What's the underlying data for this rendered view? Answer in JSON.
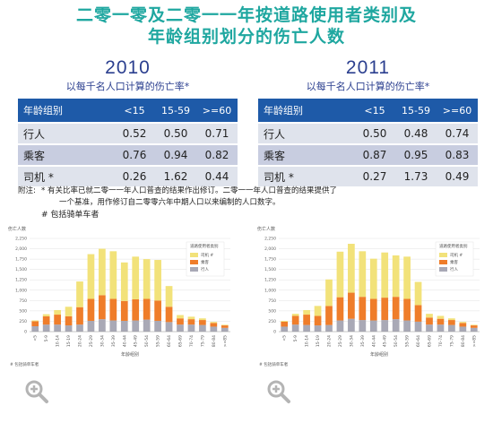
{
  "title_line1": "二零一零及二零一一年按道路使用者类别及",
  "title_line2": "年龄组别划分的伤亡人数",
  "tables": [
    {
      "year": "2010",
      "subtitle": "以每千名人口计算的伤亡率*",
      "headers": [
        "年龄组别",
        "<15",
        "15-59",
        ">=60"
      ],
      "rows": [
        {
          "label": "行人",
          "values": [
            "0.52",
            "0.50",
            "0.71"
          ]
        },
        {
          "label": "乘客",
          "values": [
            "0.76",
            "0.94",
            "0.82"
          ]
        },
        {
          "label": "司机 *",
          "values": [
            "0.26",
            "1.62",
            "0.44"
          ]
        }
      ]
    },
    {
      "year": "2011",
      "subtitle": "以每千名人口计算的伤亡率*",
      "headers": [
        "年龄组别",
        "<15",
        "15-59",
        ">=60"
      ],
      "rows": [
        {
          "label": "行人",
          "values": [
            "0.50",
            "0.48",
            "0.74"
          ]
        },
        {
          "label": "乘客",
          "values": [
            "0.87",
            "0.95",
            "0.83"
          ]
        },
        {
          "label": "司机 *",
          "values": [
            "0.27",
            "1.73",
            "0.49"
          ]
        }
      ]
    }
  ],
  "note": {
    "label": "附注:",
    "star": "*",
    "line1": "有关比率已就二零一一年人口普查的结果作出修订。二零一一年人口普查的结果提供了",
    "line2": "一个基准，用作修订自二零零六年中期人口以来编制的人口数字。",
    "line3": "# 包括骑单车者"
  },
  "colors": {
    "title": "#1fa7a0",
    "driver": "#f2e27a",
    "passenger": "#ef7d2a",
    "pedestrian": "#a9a9b6",
    "header": "#1e5aa8"
  },
  "chart_data": [
    {
      "type": "bar",
      "stacked": true,
      "ylabel": "伤亡人数",
      "xlabel": "年龄组别",
      "legend_title": "道路使用者类别",
      "legend_position": "top-right",
      "footnote": "# 包括骑单车者",
      "categories": [
        "<5",
        "5-9",
        "10-14",
        "15-19",
        "20-24",
        "25-29",
        "30-34",
        "35-39",
        "40-44",
        "45-49",
        "50-54",
        "55-59",
        "60-64",
        "65-69",
        "70-74",
        "75-79",
        "80-84",
        ">=85"
      ],
      "yticks": [
        "0",
        "250",
        "500",
        "750",
        "1,000",
        "1,250",
        "1,500",
        "1,750",
        "2,000",
        "2,250"
      ],
      "ylim": [
        0,
        2250
      ],
      "series": [
        {
          "name": "行人",
          "color": "#a9a9b6",
          "values": [
            130,
            170,
            170,
            150,
            170,
            260,
            300,
            270,
            260,
            270,
            290,
            260,
            230,
            170,
            170,
            160,
            120,
            90
          ]
        },
        {
          "name": "乘客",
          "color": "#ef7d2a",
          "values": [
            120,
            200,
            240,
            220,
            420,
            530,
            580,
            520,
            480,
            510,
            500,
            490,
            370,
            150,
            130,
            120,
            90,
            60
          ]
        },
        {
          "name": "司机 #",
          "color": "#f2e27a",
          "values": [
            20,
            50,
            110,
            230,
            620,
            1080,
            1120,
            1150,
            930,
            1030,
            960,
            980,
            500,
            80,
            60,
            40,
            25,
            15
          ]
        }
      ]
    },
    {
      "type": "bar",
      "stacked": true,
      "ylabel": "伤亡人数",
      "xlabel": "年龄组别",
      "legend_title": "道路使用者类别",
      "legend_position": "top-right",
      "footnote": "# 包括骑单车者",
      "categories": [
        "<5",
        "5-9",
        "10-14",
        "15-19",
        "20-24",
        "25-29",
        "30-34",
        "35-39",
        "40-44",
        "45-49",
        "50-54",
        "55-59",
        "60-64",
        "65-69",
        "70-74",
        "75-79",
        "80-84",
        ">=85"
      ],
      "yticks": [
        "0",
        "250",
        "500",
        "750",
        "1,000",
        "1,250",
        "1,500",
        "1,750",
        "2,000",
        "2,250"
      ],
      "ylim": [
        0,
        2250
      ],
      "series": [
        {
          "name": "行人",
          "color": "#a9a9b6",
          "values": [
            120,
            170,
            160,
            150,
            160,
            270,
            310,
            280,
            270,
            280,
            300,
            270,
            240,
            170,
            170,
            160,
            120,
            90
          ]
        },
        {
          "name": "乘客",
          "color": "#ef7d2a",
          "values": [
            120,
            210,
            250,
            230,
            460,
            560,
            630,
            560,
            520,
            540,
            540,
            520,
            400,
            170,
            140,
            120,
            90,
            60
          ]
        },
        {
          "name": "司机 #",
          "color": "#f2e27a",
          "values": [
            20,
            50,
            110,
            240,
            640,
            1100,
            1180,
            1100,
            970,
            1090,
            1000,
            1020,
            560,
            90,
            70,
            40,
            25,
            15
          ]
        }
      ]
    }
  ]
}
